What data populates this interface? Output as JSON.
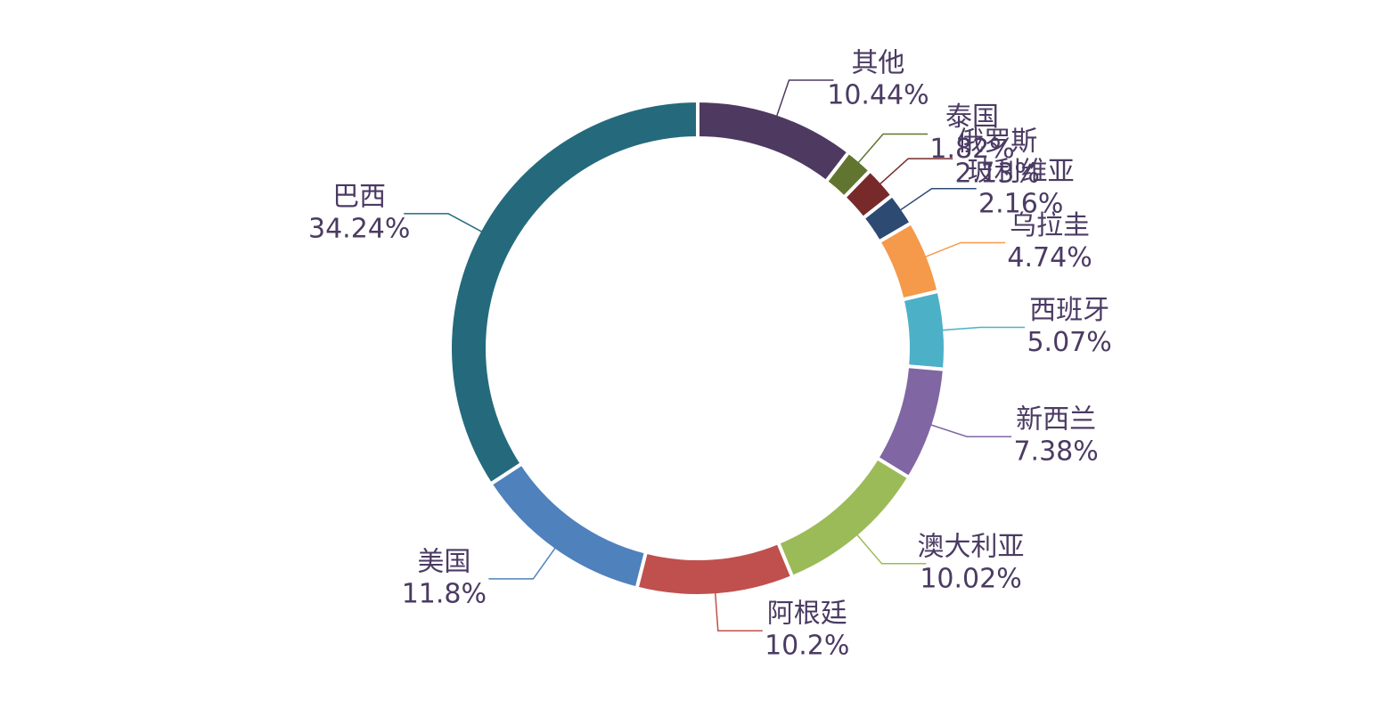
{
  "chart_data": {
    "type": "donut",
    "categories": [
      "其他",
      "泰国",
      "俄罗斯",
      "玻利维亚",
      "乌拉圭",
      "西班牙",
      "新西兰",
      "澳大利亚",
      "阿根廷",
      "美国",
      "巴西"
    ],
    "values": [
      10.44,
      1.82,
      2.13,
      2.16,
      4.74,
      5.07,
      7.38,
      10.02,
      10.2,
      11.8,
      34.24
    ],
    "value_labels": [
      "10.44%",
      "1.82%",
      "2.13%",
      "2.16%",
      "4.74%",
      "5.07%",
      "7.38%",
      "10.02%",
      "10.2%",
      "11.8%",
      "34.24%"
    ],
    "colors": [
      "#4e3a60",
      "#617530",
      "#782a2a",
      "#2d4a72",
      "#f5994a",
      "#4cb0c7",
      "#8066a3",
      "#9bbb59",
      "#c0504d",
      "#4f81bd",
      "#246a7c"
    ]
  }
}
